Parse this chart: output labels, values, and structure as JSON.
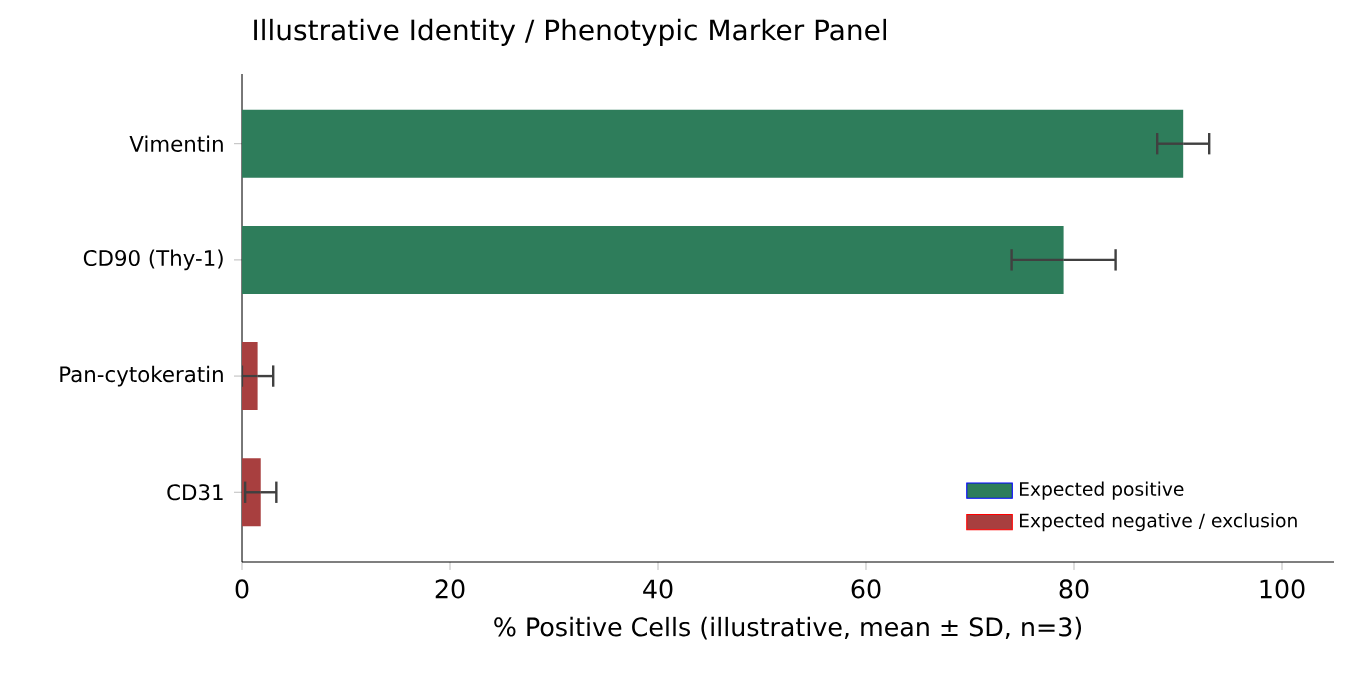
{
  "chart_data": {
    "type": "bar",
    "orientation": "horizontal",
    "title": "Illustrative Identity / Phenotypic Marker Panel",
    "xlabel": "% Positive Cells (illustrative, mean ± SD, n=3)",
    "categories": [
      "Vimentin",
      "CD90 (Thy-1)",
      "Pan-cytokeratin",
      "CD31"
    ],
    "series": [
      {
        "name": "Expected positive",
        "color": "#2e7d5b",
        "values": [
          90.5,
          79,
          null,
          null
        ],
        "errors": [
          2.5,
          5,
          null,
          null
        ]
      },
      {
        "name": "Expected negative / exclusion",
        "color": "#a83f3f",
        "values": [
          null,
          null,
          1.5,
          1.8
        ],
        "errors": [
          null,
          null,
          1.5,
          1.5
        ]
      }
    ],
    "xlim": [
      0,
      105
    ],
    "xticks": [
      0,
      20,
      40,
      60,
      80,
      100
    ],
    "legend": "bottom right"
  }
}
